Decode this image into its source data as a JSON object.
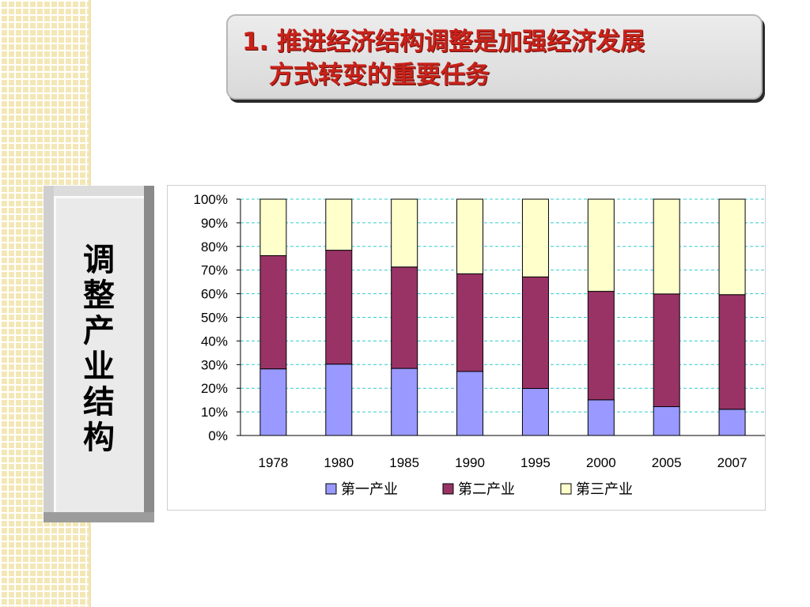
{
  "title": {
    "line1": "1. 推进经济结构调整是加强经济发展",
    "line2": "方式转变的重要任务"
  },
  "side_label": "调整产业结构",
  "colors": {
    "primary": "#9999ff",
    "secondary": "#993366",
    "tertiary": "#ffffcc",
    "title_red": "#c8221a",
    "grid": "#33cccc"
  },
  "chart_data": {
    "type": "bar",
    "stacked": "percent",
    "categories": [
      "1978",
      "1980",
      "1985",
      "1990",
      "1995",
      "2000",
      "2005",
      "2007"
    ],
    "series": [
      {
        "name": "第一产业",
        "values": [
          28.2,
          30.2,
          28.4,
          27.1,
          19.9,
          15.1,
          12.2,
          11.1
        ]
      },
      {
        "name": "第二产业",
        "values": [
          47.9,
          48.2,
          42.9,
          41.3,
          47.2,
          45.9,
          47.7,
          48.5
        ]
      },
      {
        "name": "第三产业",
        "values": [
          23.9,
          21.6,
          28.7,
          31.6,
          32.9,
          39.0,
          40.1,
          40.4
        ]
      }
    ],
    "y_ticks": [
      "0%",
      "10%",
      "20%",
      "30%",
      "40%",
      "50%",
      "60%",
      "70%",
      "80%",
      "90%",
      "100%"
    ],
    "ylim": [
      0,
      100
    ],
    "grid": true,
    "legend": "bottom"
  }
}
